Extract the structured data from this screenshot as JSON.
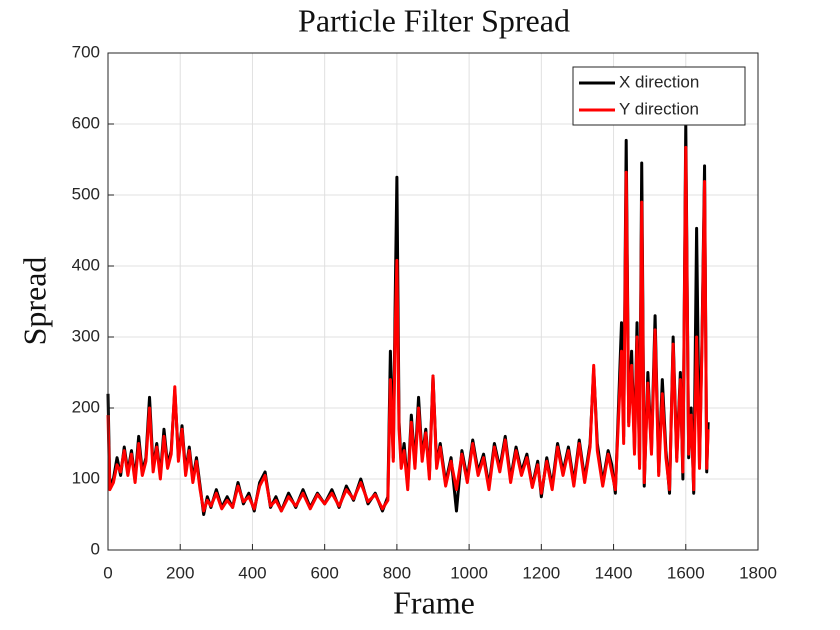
{
  "chart_data": {
    "type": "line",
    "title": "Particle Filter Spread",
    "xlabel": "Frame",
    "ylabel": "Spread",
    "x": [
      0,
      5,
      15,
      25,
      35,
      45,
      55,
      65,
      75,
      85,
      95,
      105,
      115,
      125,
      135,
      145,
      155,
      165,
      175,
      185,
      195,
      205,
      215,
      225,
      235,
      245,
      255,
      265,
      275,
      285,
      300,
      315,
      330,
      345,
      360,
      375,
      390,
      405,
      420,
      435,
      450,
      465,
      480,
      500,
      520,
      540,
      560,
      580,
      600,
      620,
      640,
      660,
      680,
      700,
      720,
      740,
      760,
      775,
      782,
      790,
      795,
      800,
      806,
      812,
      820,
      830,
      840,
      850,
      860,
      870,
      880,
      890,
      900,
      910,
      920,
      935,
      950,
      965,
      980,
      995,
      1010,
      1025,
      1040,
      1055,
      1070,
      1085,
      1100,
      1115,
      1130,
      1145,
      1160,
      1175,
      1190,
      1200,
      1215,
      1230,
      1245,
      1260,
      1275,
      1290,
      1305,
      1320,
      1335,
      1345,
      1355,
      1370,
      1385,
      1395,
      1405,
      1415,
      1422,
      1428,
      1435,
      1442,
      1450,
      1458,
      1465,
      1472,
      1478,
      1485,
      1495,
      1505,
      1515,
      1525,
      1535,
      1545,
      1555,
      1565,
      1575,
      1585,
      1592,
      1600,
      1608,
      1615,
      1622,
      1630,
      1638,
      1645,
      1652,
      1658,
      1662
    ],
    "series": [
      {
        "name": "X direction",
        "color": "#000000",
        "values": [
          220,
          90,
          100,
          130,
          105,
          145,
          110,
          140,
          100,
          160,
          110,
          130,
          215,
          115,
          150,
          105,
          170,
          120,
          140,
          225,
          130,
          175,
          110,
          145,
          100,
          130,
          90,
          50,
          75,
          60,
          85,
          60,
          75,
          60,
          95,
          65,
          80,
          55,
          95,
          110,
          60,
          75,
          55,
          80,
          60,
          85,
          60,
          80,
          65,
          85,
          60,
          90,
          70,
          100,
          65,
          80,
          55,
          75,
          280,
          130,
          340,
          525,
          180,
          120,
          150,
          90,
          190,
          120,
          215,
          130,
          170,
          105,
          245,
          120,
          150,
          95,
          130,
          55,
          140,
          100,
          155,
          110,
          135,
          90,
          150,
          115,
          160,
          100,
          145,
          110,
          135,
          90,
          125,
          75,
          130,
          90,
          150,
          110,
          145,
          95,
          155,
          100,
          150,
          255,
          150,
          95,
          140,
          120,
          80,
          220,
          320,
          160,
          577,
          180,
          280,
          140,
          320,
          120,
          545,
          90,
          250,
          140,
          330,
          110,
          240,
          140,
          80,
          300,
          130,
          250,
          100,
          600,
          130,
          200,
          80,
          453,
          120,
          300,
          541,
          110,
          180
        ]
      },
      {
        "name": "Y direction",
        "color": "#ff0000",
        "values": [
          190,
          85,
          95,
          120,
          110,
          140,
          105,
          135,
          95,
          150,
          105,
          125,
          200,
          110,
          145,
          100,
          160,
          115,
          135,
          230,
          125,
          170,
          105,
          140,
          95,
          125,
          85,
          55,
          70,
          62,
          80,
          58,
          70,
          60,
          90,
          68,
          75,
          58,
          90,
          105,
          62,
          70,
          55,
          75,
          62,
          80,
          58,
          78,
          65,
          80,
          62,
          85,
          72,
          95,
          68,
          78,
          58,
          70,
          240,
          125,
          300,
          408,
          170,
          115,
          140,
          85,
          180,
          115,
          200,
          125,
          165,
          100,
          245,
          115,
          145,
          90,
          125,
          85,
          135,
          95,
          150,
          105,
          130,
          85,
          145,
          110,
          155,
          95,
          140,
          105,
          130,
          88,
          120,
          80,
          125,
          85,
          145,
          105,
          140,
          90,
          150,
          95,
          145,
          260,
          140,
          90,
          135,
          110,
          85,
          200,
          280,
          150,
          532,
          175,
          260,
          135,
          300,
          115,
          490,
          95,
          235,
          135,
          310,
          105,
          220,
          130,
          85,
          290,
          125,
          240,
          110,
          567,
          135,
          190,
          85,
          300,
          115,
          290,
          519,
          115,
          170
        ]
      }
    ],
    "xlim": [
      0,
      1800
    ],
    "ylim": [
      0,
      700
    ],
    "xticks": [
      0,
      200,
      400,
      600,
      800,
      1000,
      1200,
      1400,
      1600,
      1800
    ],
    "yticks": [
      0,
      100,
      200,
      300,
      400,
      500,
      600,
      700
    ],
    "grid": true,
    "legend": "northeast"
  }
}
